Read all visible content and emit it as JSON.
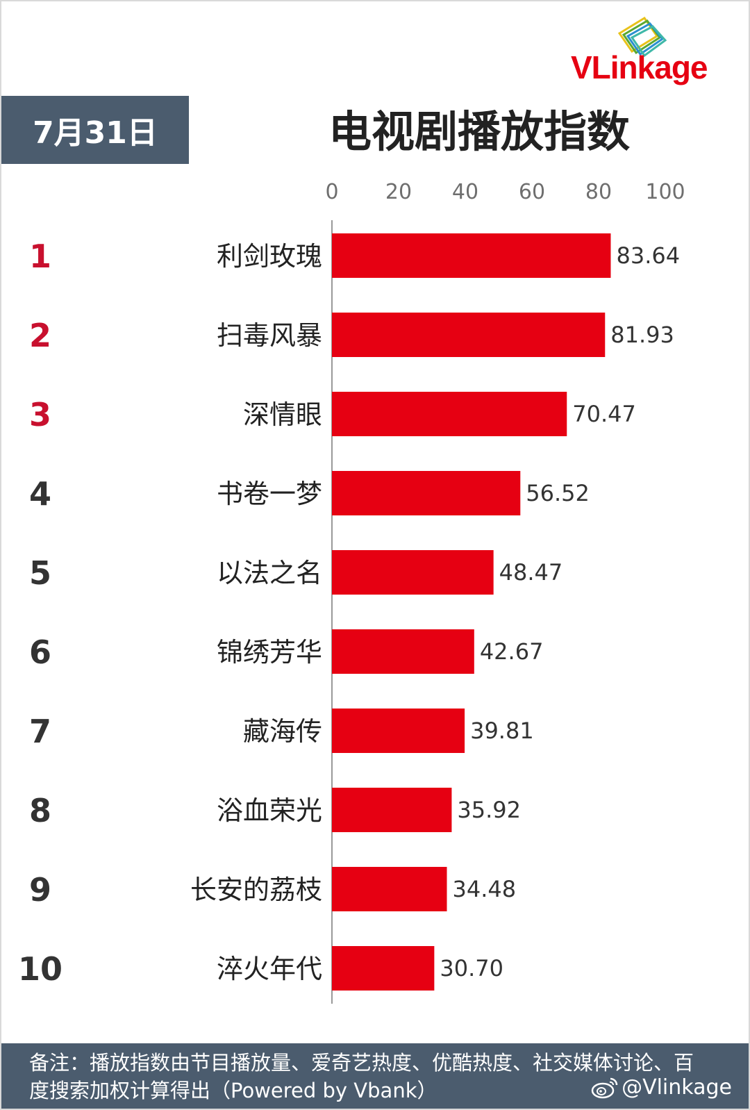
{
  "logo": {
    "text": "VLinkage",
    "icon": "vlinkage-stacked-cards-logo"
  },
  "header": {
    "date": "7月31日",
    "title": "电视剧播放指数"
  },
  "chart_data": {
    "type": "bar",
    "orientation": "horizontal",
    "title": "电视剧播放指数",
    "xlim": [
      0,
      100
    ],
    "xticks": [
      0,
      20,
      40,
      60,
      80,
      100
    ],
    "ranks": [
      "1",
      "2",
      "3",
      "4",
      "5",
      "6",
      "7",
      "8",
      "9",
      "10"
    ],
    "categories": [
      "利剑玫瑰",
      "扫毒风暴",
      "深情眼",
      "书卷一梦",
      "以法之名",
      "锦绣芳华",
      "藏海传",
      "浴血荣光",
      "长安的荔枝",
      "淬火年代"
    ],
    "values": [
      83.64,
      81.93,
      70.47,
      56.52,
      48.47,
      42.67,
      39.81,
      35.92,
      34.48,
      30.7
    ],
    "value_labels": [
      "83.64",
      "81.93",
      "70.47",
      "56.52",
      "48.47",
      "42.67",
      "39.81",
      "35.92",
      "34.48",
      "30.70"
    ],
    "grid": false,
    "colors": {
      "bar": "#e60012",
      "top_rank": "#c8102e",
      "rank": "#333333",
      "axis": "#999999"
    }
  },
  "footer": {
    "note": "备注：播放指数由节目播放量、爱奇艺热度、优酷热度、社交媒体讨论、百度搜索加权计算得出（Powered by Vbank）",
    "handle": "@Vlinkage",
    "icon": "weibo-icon"
  }
}
